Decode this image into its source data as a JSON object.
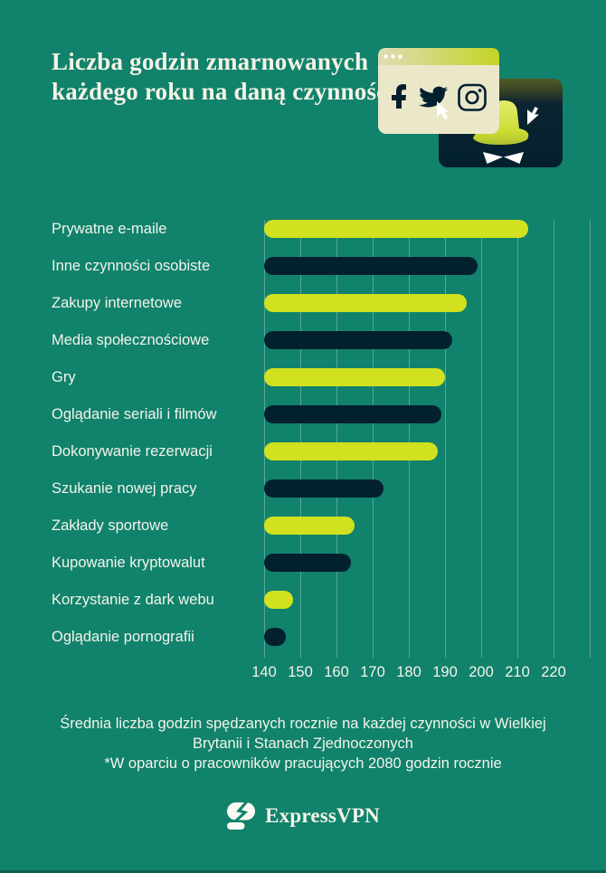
{
  "title": "Liczba godzin zmarnowanych każdego roku na daną czynność",
  "colors": {
    "background": "#11826B",
    "lime": "#D2E11F",
    "navy": "#03202F",
    "cream": "#EBE8CA",
    "text": "#F3F4EC"
  },
  "illustration": {
    "description": "browser window with social icons and spy window",
    "icons": [
      "facebook-icon",
      "twitter-icon",
      "instagram-icon",
      "cursor-icon",
      "spy-hat-icon",
      "cursor-icon"
    ]
  },
  "chart_data": {
    "type": "bar",
    "orientation": "horizontal",
    "title": "Liczba godzin zmarnowanych każdego roku na daną czynność",
    "categories": [
      "Prywatne e-maile",
      "Inne czynności osobiste",
      "Zakupy internetowe",
      "Media społecznościowe",
      "Gry",
      "Oglądanie seriali i filmów",
      "Dokonywanie rezerwacji",
      "Szukanie nowej pracy",
      "Zakłady sportowe",
      "Kupowanie kryptowalut",
      "Korzystanie z dark webu",
      "Oglądanie pornografii"
    ],
    "values": [
      213,
      199,
      196,
      192,
      190,
      189,
      188,
      173,
      165,
      164,
      148,
      146
    ],
    "unit": "godziny rocznie",
    "xlim": [
      140,
      230
    ],
    "x_ticks": [
      140,
      150,
      160,
      170,
      180,
      190,
      200,
      210,
      220
    ],
    "grid": true,
    "bar_colors_alternating": [
      "#D2E11F",
      "#03202F"
    ]
  },
  "footer": {
    "line1": "Średnia liczba godzin spędzanych rocznie na każdej czynności w Wielkiej",
    "line2": "Brytanii i Stanach Zjednoczonych",
    "line3": "*W oparciu o pracowników pracujących 2080 godzin rocznie"
  },
  "brand": {
    "logo_text": "ExpressVPN"
  }
}
